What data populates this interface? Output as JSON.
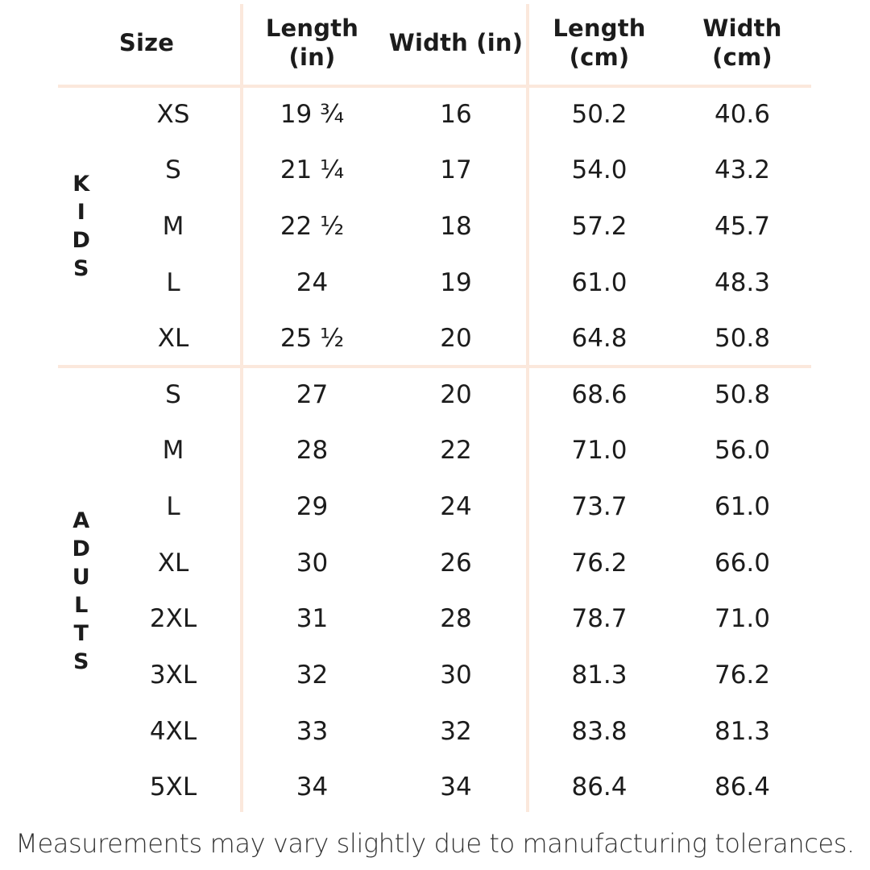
{
  "table": {
    "headers": {
      "size": [
        "Size"
      ],
      "length_in": [
        "Length",
        "(in)"
      ],
      "width_in": [
        "Width (in)"
      ],
      "length_cm": [
        "Length",
        "(cm)"
      ],
      "width_cm": [
        "Width",
        "(cm)"
      ]
    },
    "groups": [
      {
        "label": "KIDS",
        "letters": [
          "K",
          "I",
          "D",
          "S"
        ],
        "rows": [
          {
            "size": "XS",
            "length_in": "19 ¾",
            "width_in": "16",
            "length_cm": "50.2",
            "width_cm": "40.6"
          },
          {
            "size": "S",
            "length_in": "21 ¼",
            "width_in": "17",
            "length_cm": "54.0",
            "width_cm": "43.2"
          },
          {
            "size": "M",
            "length_in": "22 ½",
            "width_in": "18",
            "length_cm": "57.2",
            "width_cm": "45.7"
          },
          {
            "size": "L",
            "length_in": "24",
            "width_in": "19",
            "length_cm": "61.0",
            "width_cm": "48.3"
          },
          {
            "size": "XL",
            "length_in": "25 ½",
            "width_in": "20",
            "length_cm": "64.8",
            "width_cm": "50.8"
          }
        ]
      },
      {
        "label": "ADULTS",
        "letters": [
          "A",
          "D",
          "U",
          "L",
          "T",
          "S"
        ],
        "rows": [
          {
            "size": "S",
            "length_in": "27",
            "width_in": "20",
            "length_cm": "68.6",
            "width_cm": "50.8"
          },
          {
            "size": "M",
            "length_in": "28",
            "width_in": "22",
            "length_cm": "71.0",
            "width_cm": "56.0"
          },
          {
            "size": "L",
            "length_in": "29",
            "width_in": "24",
            "length_cm": "73.7",
            "width_cm": "61.0"
          },
          {
            "size": "XL",
            "length_in": "30",
            "width_in": "26",
            "length_cm": "76.2",
            "width_cm": "66.0"
          },
          {
            "size": "2XL",
            "length_in": "31",
            "width_in": "28",
            "length_cm": "78.7",
            "width_cm": "71.0"
          },
          {
            "size": "3XL",
            "length_in": "32",
            "width_in": "30",
            "length_cm": "81.3",
            "width_cm": "76.2"
          },
          {
            "size": "4XL",
            "length_in": "33",
            "width_in": "32",
            "length_cm": "83.8",
            "width_cm": "81.3"
          },
          {
            "size": "5XL",
            "length_in": "34",
            "width_in": "34",
            "length_cm": "86.4",
            "width_cm": "86.4"
          }
        ]
      }
    ]
  },
  "footer": {
    "note": "Measurements may vary slightly due to manufacturing tolerances."
  },
  "colors": {
    "background": "#ffffff",
    "divider": "#fbe8dc",
    "text": "#1c1c1c",
    "footer_text": "#333333"
  },
  "chart_data": {
    "type": "table",
    "title": "",
    "columns": [
      "Size",
      "Length (in)",
      "Width (in)",
      "Length (cm)",
      "Width (cm)"
    ],
    "row_groups": [
      {
        "group": "KIDS",
        "rows": [
          [
            "XS",
            "19 ¾",
            "16",
            "50.2",
            "40.6"
          ],
          [
            "S",
            "21 ¼",
            "17",
            "54.0",
            "43.2"
          ],
          [
            "M",
            "22 ½",
            "18",
            "57.2",
            "45.7"
          ],
          [
            "L",
            "24",
            "19",
            "61.0",
            "48.3"
          ],
          [
            "XL",
            "25 ½",
            "20",
            "64.8",
            "50.8"
          ]
        ]
      },
      {
        "group": "ADULTS",
        "rows": [
          [
            "S",
            "27",
            "20",
            "68.6",
            "50.8"
          ],
          [
            "M",
            "28",
            "22",
            "71.0",
            "56.0"
          ],
          [
            "L",
            "29",
            "24",
            "73.7",
            "61.0"
          ],
          [
            "XL",
            "30",
            "26",
            "76.2",
            "66.0"
          ],
          [
            "2XL",
            "31",
            "28",
            "78.7",
            "71.0"
          ],
          [
            "3XL",
            "32",
            "30",
            "81.3",
            "76.2"
          ],
          [
            "4XL",
            "33",
            "32",
            "83.8",
            "81.3"
          ],
          [
            "5XL",
            "34",
            "34",
            "86.4",
            "86.4"
          ]
        ]
      }
    ],
    "note": "Measurements may vary slightly due to manufacturing tolerances.",
    "layout_hints": {
      "group_labels_vertical": true,
      "divider_color": "#fbe8dc",
      "grid": "partial"
    }
  }
}
